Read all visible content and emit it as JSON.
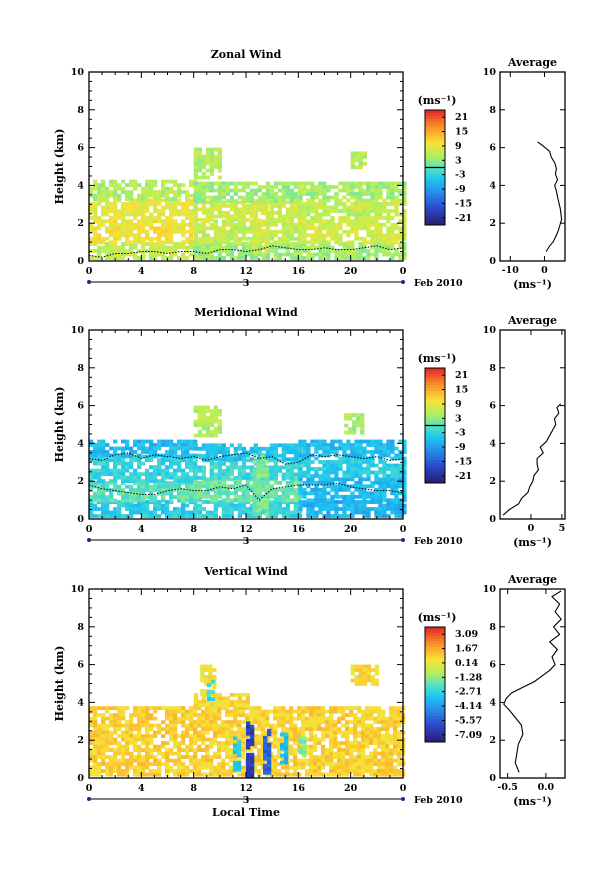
{
  "chart_data": [
    {
      "type": "heatmap",
      "title": "Zonal Wind",
      "xlabel": "",
      "ylabel": "Height (km)",
      "x_ticks": [
        "0",
        "4",
        "8",
        "12",
        "16",
        "20",
        "0"
      ],
      "y_ticks": [
        "0",
        "2",
        "4",
        "6",
        "8",
        "10"
      ],
      "xlim": [
        0,
        24
      ],
      "ylim": [
        0,
        10
      ],
      "date_day": "3",
      "date_label": "Feb 2010",
      "colorbar": {
        "unit": "(ms⁻¹)",
        "ticks": [
          "21",
          "15",
          "9",
          "3",
          "-3",
          "-9",
          "-15",
          "-21"
        ],
        "range": [
          -24,
          24
        ],
        "zero_line": 0
      },
      "fields": [
        {
          "x": [
            0,
            8
          ],
          "y": [
            0.1,
            1.0
          ],
          "value": 6
        },
        {
          "x": [
            0,
            8
          ],
          "y": [
            1.0,
            2.2
          ],
          "value": 10
        },
        {
          "x": [
            0,
            8
          ],
          "y": [
            2.2,
            3.3
          ],
          "value": 9
        },
        {
          "x": [
            0,
            8
          ],
          "y": [
            3.3,
            4.3
          ],
          "value": 5
        },
        {
          "x": [
            8,
            16
          ],
          "y": [
            0.1,
            1.0
          ],
          "value": 4
        },
        {
          "x": [
            8,
            16
          ],
          "y": [
            1.0,
            2.2
          ],
          "value": 6
        },
        {
          "x": [
            8,
            16
          ],
          "y": [
            2.2,
            3.2
          ],
          "value": 7
        },
        {
          "x": [
            8,
            16
          ],
          "y": [
            3.2,
            4.2
          ],
          "value": 4
        },
        {
          "x": [
            16,
            24
          ],
          "y": [
            0.1,
            1.0
          ],
          "value": 4
        },
        {
          "x": [
            16,
            24
          ],
          "y": [
            1.0,
            2.2
          ],
          "value": 7
        },
        {
          "x": [
            16,
            24
          ],
          "y": [
            2.2,
            3.3
          ],
          "value": 6
        },
        {
          "x": [
            16,
            24
          ],
          "y": [
            3.3,
            4.2
          ],
          "value": 4
        },
        {
          "x": [
            8,
            10
          ],
          "y": [
            4.5,
            6.0
          ],
          "value": 5
        },
        {
          "x": [
            20,
            21
          ],
          "y": [
            5.0,
            5.8
          ],
          "value": 5
        },
        {
          "x": [
            12.5,
            13.5
          ],
          "y": [
            0.5,
            3.0
          ],
          "value": 8
        }
      ],
      "contour_height": [
        0.3,
        0.2,
        0.4,
        0.4,
        0.5,
        0.5,
        0.4,
        0.5,
        0.5,
        0.4,
        0.6,
        0.6,
        0.5,
        0.6,
        0.8,
        0.7,
        0.6,
        0.6,
        0.7,
        0.6,
        0.6,
        0.7,
        0.8,
        0.6,
        0.7
      ],
      "profile": {
        "title": "Average",
        "xlabel": "(ms⁻¹)",
        "x_ticks": [
          "-10",
          "0"
        ],
        "tick_values": [
          -10,
          0
        ],
        "y_ticks": [
          "0",
          "2",
          "4",
          "6",
          "8",
          "10"
        ],
        "xlim": [
          -13,
          6
        ],
        "ylim": [
          0,
          10
        ],
        "y": [
          0.5,
          0.8,
          1.0,
          1.3,
          1.6,
          1.9,
          2.2,
          2.5,
          2.8,
          3.1,
          3.4,
          3.7,
          4.0,
          4.3,
          4.6,
          4.9,
          5.2,
          5.5,
          5.8,
          6.1,
          6.3
        ],
        "x": [
          0.5,
          1.5,
          2.5,
          3.3,
          4.0,
          4.5,
          5.0,
          4.8,
          4.6,
          4.2,
          3.8,
          3.5,
          3.0,
          3.8,
          3.2,
          3.5,
          3.0,
          2.0,
          1.5,
          -0.5,
          -2.0
        ]
      }
    },
    {
      "type": "heatmap",
      "title": "Meridional Wind",
      "xlabel": "",
      "ylabel": "Height (km)",
      "x_ticks": [
        "0",
        "4",
        "8",
        "12",
        "16",
        "20",
        "0"
      ],
      "y_ticks": [
        "0",
        "2",
        "4",
        "6",
        "8",
        "10"
      ],
      "xlim": [
        0,
        24
      ],
      "ylim": [
        0,
        10
      ],
      "date_day": "3",
      "date_label": "Feb 2010",
      "colorbar": {
        "unit": "(ms⁻¹)",
        "ticks": [
          "21",
          "15",
          "9",
          "3",
          "-3",
          "-9",
          "-15",
          "-21"
        ],
        "range": [
          -24,
          24
        ],
        "zero_line": 0
      },
      "fields": [
        {
          "x": [
            0,
            8
          ],
          "y": [
            0.1,
            1.0
          ],
          "value": -4
        },
        {
          "x": [
            0,
            8
          ],
          "y": [
            1.0,
            2.0
          ],
          "value": 0
        },
        {
          "x": [
            0,
            8
          ],
          "y": [
            2.0,
            3.4
          ],
          "value": -3
        },
        {
          "x": [
            0,
            8
          ],
          "y": [
            3.4,
            4.2
          ],
          "value": -6
        },
        {
          "x": [
            8,
            16
          ],
          "y": [
            0.1,
            1.0
          ],
          "value": -3
        },
        {
          "x": [
            8,
            16
          ],
          "y": [
            1.0,
            2.2
          ],
          "value": 1
        },
        {
          "x": [
            8,
            16
          ],
          "y": [
            2.2,
            3.2
          ],
          "value": -2
        },
        {
          "x": [
            8,
            16
          ],
          "y": [
            3.2,
            4.0
          ],
          "value": -5
        },
        {
          "x": [
            16,
            24
          ],
          "y": [
            0.1,
            1.0
          ],
          "value": -7
        },
        {
          "x": [
            16,
            24
          ],
          "y": [
            1.0,
            2.2
          ],
          "value": -6
        },
        {
          "x": [
            16,
            24
          ],
          "y": [
            2.2,
            3.3
          ],
          "value": -4
        },
        {
          "x": [
            16,
            24
          ],
          "y": [
            3.3,
            4.2
          ],
          "value": -6
        },
        {
          "x": [
            8,
            10
          ],
          "y": [
            4.5,
            6.0
          ],
          "value": 5
        },
        {
          "x": [
            19.5,
            21
          ],
          "y": [
            4.6,
            5.6
          ],
          "value": 4
        },
        {
          "x": [
            12.5,
            13.5
          ],
          "y": [
            0.3,
            3.5
          ],
          "value": 2
        }
      ],
      "contour_height": [
        1.8,
        1.6,
        1.5,
        1.4,
        1.3,
        1.3,
        1.5,
        1.6,
        1.5,
        1.5,
        1.7,
        1.6,
        1.8,
        1.0,
        1.6,
        1.7,
        1.8,
        1.8,
        1.8,
        1.9,
        1.7,
        1.6,
        1.5,
        1.5,
        1.4
      ],
      "contour_height_2": [
        3.2,
        3.1,
        3.4,
        3.5,
        3.2,
        3.4,
        3.3,
        3.2,
        3.3,
        3.1,
        3.3,
        3.4,
        3.5,
        3.2,
        3.3,
        2.9,
        3.0,
        3.4,
        3.3,
        3.4,
        3.3,
        3.2,
        3.3,
        3.1,
        3.2
      ],
      "profile": {
        "title": "Average",
        "xlabel": "(ms⁻¹)",
        "x_ticks": [
          "0",
          "5"
        ],
        "tick_values": [
          0,
          5
        ],
        "y_ticks": [
          "0",
          "2",
          "4",
          "6",
          "8",
          "10"
        ],
        "xlim": [
          -5,
          5.5
        ],
        "ylim": [
          0,
          10
        ],
        "y": [
          0.2,
          0.5,
          0.8,
          1.1,
          1.4,
          1.7,
          2.0,
          2.3,
          2.6,
          2.9,
          3.2,
          3.5,
          3.8,
          4.1,
          4.4,
          4.7,
          5.0,
          5.3,
          5.6,
          5.9,
          6.1
        ],
        "x": [
          -4.5,
          -3.5,
          -2.0,
          -1.5,
          -0.5,
          -0.2,
          0.3,
          0.5,
          1.2,
          1.0,
          1.0,
          2.0,
          1.5,
          2.5,
          3.0,
          3.5,
          4.0,
          3.8,
          4.5,
          4.2,
          4.8
        ]
      }
    },
    {
      "type": "heatmap",
      "title": "Vertical Wind",
      "xlabel": "Local Time",
      "ylabel": "Height (km)",
      "x_ticks": [
        "0",
        "4",
        "8",
        "12",
        "16",
        "20",
        "0"
      ],
      "y_ticks": [
        "0",
        "2",
        "4",
        "6",
        "8",
        "10"
      ],
      "xlim": [
        0,
        24
      ],
      "ylim": [
        0,
        10
      ],
      "date_day": "3",
      "date_label": "Feb 2010",
      "colorbar": {
        "unit": "(ms⁻¹)",
        "ticks": [
          "3.09",
          "1.67",
          "0.14",
          "-1.28",
          "-2.71",
          "-4.14",
          "-5.57",
          "-7.09"
        ],
        "range": [
          -7.8,
          3.8
        ],
        "zero_line": null
      },
      "fields": [
        {
          "x": [
            0,
            24
          ],
          "y": [
            0.1,
            3.8
          ],
          "value": 0.8
        },
        {
          "x": [
            8,
            12
          ],
          "y": [
            3.8,
            4.5
          ],
          "value": 0.6
        },
        {
          "x": [
            8.5,
            9.5
          ],
          "y": [
            4.5,
            6.0
          ],
          "value": 0.4
        },
        {
          "x": [
            20,
            22
          ],
          "y": [
            5.0,
            6.0
          ],
          "value": 0.6
        },
        {
          "x": [
            12,
            12.6
          ],
          "y": [
            0.2,
            3.0
          ],
          "value": -6.5
        },
        {
          "x": [
            13.3,
            13.8
          ],
          "y": [
            0.3,
            2.6
          ],
          "value": -5.5
        },
        {
          "x": [
            11.0,
            11.4
          ],
          "y": [
            0.5,
            2.2
          ],
          "value": -3.0
        },
        {
          "x": [
            14.6,
            15.0
          ],
          "y": [
            0.8,
            2.4
          ],
          "value": -3.5
        },
        {
          "x": [
            16.0,
            16.4
          ],
          "y": [
            1.2,
            2.2
          ],
          "value": -1.5
        },
        {
          "x": [
            9.0,
            9.4
          ],
          "y": [
            4.2,
            5.2
          ],
          "value": -2.5
        }
      ],
      "profile": {
        "title": "Average",
        "xlabel": "(ms⁻¹)",
        "x_ticks": [
          "-0.5",
          "0.0"
        ],
        "tick_values": [
          -0.5,
          0.0
        ],
        "y_ticks": [
          "0",
          "2",
          "4",
          "6",
          "8",
          "10"
        ],
        "xlim": [
          -0.6,
          0.25
        ],
        "ylim": [
          0,
          10
        ],
        "y": [
          0.3,
          0.8,
          1.3,
          1.8,
          2.3,
          2.8,
          3.3,
          3.6,
          3.9,
          4.2,
          4.5,
          4.8,
          5.1,
          5.4,
          5.7,
          6.0,
          6.4,
          6.8,
          7.2,
          7.6,
          8.0,
          8.4,
          8.8,
          9.2,
          9.6,
          9.9
        ],
        "x": [
          -0.35,
          -0.4,
          -0.38,
          -0.36,
          -0.3,
          -0.32,
          -0.42,
          -0.48,
          -0.55,
          -0.52,
          -0.45,
          -0.3,
          -0.15,
          -0.05,
          0.05,
          0.12,
          0.08,
          0.15,
          0.05,
          0.18,
          0.1,
          0.2,
          0.12,
          0.18,
          0.08,
          0.2
        ]
      }
    }
  ]
}
